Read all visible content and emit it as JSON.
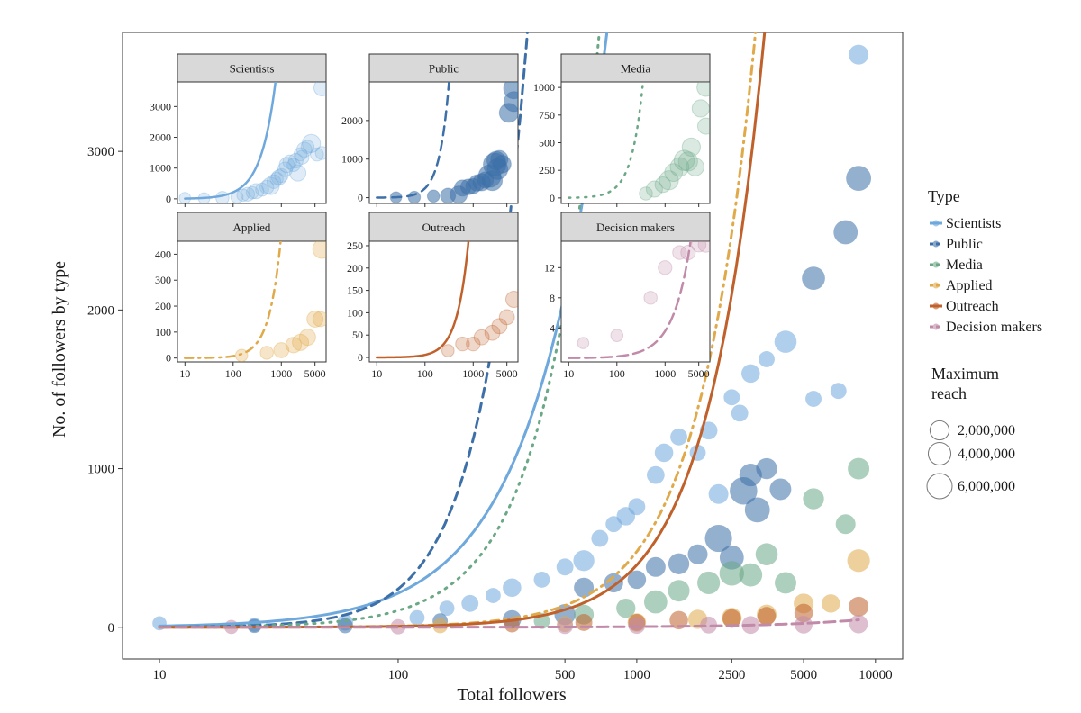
{
  "chart_data": {
    "type": "scatter",
    "xlabel": "Total followers",
    "ylabel": "No. of followers by type",
    "x_scale": "log",
    "xlim": [
      7,
      13000
    ],
    "ylim": [
      -200,
      3750
    ],
    "xticks": [
      10,
      100,
      500,
      1000,
      2500,
      5000,
      10000
    ],
    "xtick_labels": [
      "10",
      "100",
      "500",
      "1000",
      "2500",
      "5000",
      "10000"
    ],
    "yticks": [
      0,
      1000,
      2000,
      3000
    ],
    "ytick_labels": [
      "0",
      "1000",
      "2000",
      "3000"
    ],
    "grid": false,
    "legend_type": {
      "title": "Type",
      "position": "right",
      "entries": [
        "Scientists",
        "Public",
        "Media",
        "Applied",
        "Outreach",
        "Decision makers"
      ]
    },
    "legend_size": {
      "title_line1": "Maximum",
      "title_line2": "reach",
      "entries": [
        {
          "label": "2,000,000",
          "value": 2000000
        },
        {
          "label": "4,000,000",
          "value": 4000000
        },
        {
          "label": "6,000,000",
          "value": 6000000
        }
      ]
    },
    "series": [
      {
        "name": "Scientists",
        "color": "#6fa8dc",
        "dash": "solid",
        "fit_share": 0.31,
        "fit_power": 1.42,
        "points": [
          [
            10,
            25,
            0.3
          ],
          [
            25,
            15,
            0.3
          ],
          [
            60,
            30,
            0.5
          ],
          [
            120,
            60,
            0.4
          ],
          [
            160,
            120,
            0.4
          ],
          [
            200,
            150,
            0.6
          ],
          [
            250,
            200,
            0.4
          ],
          [
            300,
            250,
            0.8
          ],
          [
            400,
            300,
            0.5
          ],
          [
            500,
            380,
            0.6
          ],
          [
            600,
            420,
            1.2
          ],
          [
            700,
            560,
            0.6
          ],
          [
            800,
            650,
            0.5
          ],
          [
            900,
            700,
            0.8
          ],
          [
            1000,
            760,
            0.6
          ],
          [
            1200,
            960,
            0.7
          ],
          [
            1300,
            1100,
            0.8
          ],
          [
            1500,
            1200,
            0.6
          ],
          [
            1800,
            1100,
            0.5
          ],
          [
            2000,
            1240,
            0.7
          ],
          [
            2200,
            840,
            1.0
          ],
          [
            2500,
            1450,
            0.5
          ],
          [
            2700,
            1350,
            0.6
          ],
          [
            3000,
            1600,
            0.8
          ],
          [
            3500,
            1690,
            0.5
          ],
          [
            4200,
            1800,
            1.4
          ],
          [
            5500,
            1440,
            0.5
          ],
          [
            7000,
            1490,
            0.5
          ],
          [
            8500,
            3610,
            1.0
          ]
        ]
      },
      {
        "name": "Public",
        "color": "#3d6fa8",
        "dash": "10,7",
        "fit_share": 0.0096,
        "fit_power": 2.2,
        "points": [
          [
            25,
            8,
            0.3
          ],
          [
            60,
            10,
            0.4
          ],
          [
            150,
            40,
            0.4
          ],
          [
            300,
            50,
            0.8
          ],
          [
            500,
            80,
            1.2
          ],
          [
            600,
            250,
            1.0
          ],
          [
            800,
            280,
            0.9
          ],
          [
            1000,
            300,
            0.8
          ],
          [
            1200,
            380,
            1.0
          ],
          [
            1500,
            400,
            1.2
          ],
          [
            1800,
            460,
            1.0
          ],
          [
            2200,
            560,
            2.5
          ],
          [
            2500,
            440,
            1.8
          ],
          [
            2800,
            860,
            2.6
          ],
          [
            3000,
            960,
            1.5
          ],
          [
            3200,
            740,
            2.0
          ],
          [
            3500,
            1000,
            1.2
          ],
          [
            4000,
            870,
            1.3
          ],
          [
            5500,
            2200,
            1.6
          ],
          [
            7500,
            2490,
            1.8
          ],
          [
            8500,
            2830,
            2.0
          ]
        ]
      },
      {
        "name": "Media",
        "color": "#6aa886",
        "dash": "2,7",
        "fit_share": 0.022,
        "fit_power": 1.84,
        "points": [
          [
            400,
            40,
            0.5
          ],
          [
            600,
            80,
            1.0
          ],
          [
            900,
            120,
            0.9
          ],
          [
            1200,
            160,
            1.6
          ],
          [
            1500,
            230,
            1.3
          ],
          [
            2000,
            280,
            1.5
          ],
          [
            2500,
            340,
            1.9
          ],
          [
            3000,
            330,
            1.6
          ],
          [
            3500,
            460,
            1.4
          ],
          [
            4200,
            280,
            1.3
          ],
          [
            5500,
            810,
            1.2
          ],
          [
            7500,
            650,
            1.0
          ],
          [
            8500,
            1000,
            1.3
          ]
        ]
      },
      {
        "name": "Applied",
        "color": "#e0a94a",
        "dash": "9,6,2,6",
        "fit_share": 0.0019,
        "fit_power": 1.8,
        "points": [
          [
            150,
            10,
            0.4
          ],
          [
            500,
            20,
            0.5
          ],
          [
            1000,
            30,
            0.8
          ],
          [
            1800,
            50,
            0.9
          ],
          [
            2500,
            60,
            1.0
          ],
          [
            3500,
            80,
            1.0
          ],
          [
            5000,
            150,
            1.0
          ],
          [
            6500,
            150,
            0.8
          ],
          [
            8500,
            420,
            1.5
          ]
        ]
      },
      {
        "name": "Outreach",
        "color": "#c0612b",
        "dash": "solid",
        "fit_share": 0.00127,
        "fit_power": 1.83,
        "points": [
          [
            300,
            15,
            0.4
          ],
          [
            600,
            30,
            0.6
          ],
          [
            1000,
            30,
            0.6
          ],
          [
            1500,
            45,
            0.8
          ],
          [
            2500,
            55,
            0.8
          ],
          [
            3500,
            70,
            0.8
          ],
          [
            5000,
            90,
            0.8
          ],
          [
            8500,
            130,
            1.0
          ]
        ]
      },
      {
        "name": "Decision makers",
        "color": "#c18aa8",
        "dash": "12,6",
        "fit_share": 0.0009,
        "fit_power": 1.2,
        "points": [
          [
            20,
            2,
            0.3
          ],
          [
            100,
            3,
            0.4
          ],
          [
            500,
            8,
            0.5
          ],
          [
            1000,
            12,
            0.6
          ],
          [
            2000,
            14,
            0.6
          ],
          [
            3000,
            14,
            0.7
          ],
          [
            5000,
            16,
            0.7
          ],
          [
            8500,
            20,
            0.8
          ]
        ]
      }
    ],
    "insets": [
      {
        "title": "Scientists",
        "series": "Scientists",
        "ylim": [
          -150,
          3800
        ],
        "yticks": [
          0,
          1000,
          2000,
          3000
        ],
        "ytick_labels": [
          "0",
          "1000",
          "2000",
          "3000"
        ],
        "fit_share": 0.31,
        "fit_power": 1.42,
        "point_alpha": 0.22
      },
      {
        "title": "Public",
        "series": "Public",
        "ylim": [
          -150,
          3000
        ],
        "yticks": [
          0,
          1000,
          2000
        ],
        "ytick_labels": [
          "0",
          "1000",
          "2000"
        ],
        "fit_share": 0.0096,
        "fit_power": 2.2,
        "point_alpha": 0.55
      },
      {
        "title": "Media",
        "series": "Media",
        "ylim": [
          -50,
          1050
        ],
        "yticks": [
          0,
          250,
          500,
          750,
          1000
        ],
        "ytick_labels": [
          "0",
          "250",
          "500",
          "750",
          "1000"
        ],
        "fit_share": 0.022,
        "fit_power": 1.84,
        "point_alpha": 0.25
      },
      {
        "title": "Applied",
        "series": "Applied",
        "ylim": [
          -15,
          450
        ],
        "yticks": [
          0,
          100,
          200,
          300,
          400
        ],
        "ytick_labels": [
          "0",
          "100",
          "200",
          "300",
          "400"
        ],
        "fit_share": 0.0019,
        "fit_power": 1.8,
        "point_alpha": 0.3
      },
      {
        "title": "Outreach",
        "series": "Outreach",
        "ylim": [
          -10,
          260
        ],
        "yticks": [
          0,
          50,
          100,
          150,
          200,
          250
        ],
        "ytick_labels": [
          "0",
          "50",
          "100",
          "150",
          "200",
          "250"
        ],
        "fit_share": 0.00127,
        "fit_power": 1.83,
        "point_alpha": 0.25
      },
      {
        "title": "Decision makers",
        "series": "Decision makers",
        "ylim": [
          -0.5,
          15.5
        ],
        "yticks": [
          4,
          8,
          12
        ],
        "ytick_labels": [
          "4",
          "8",
          "12"
        ],
        "fit_share": 0.0009,
        "fit_power": 1.2,
        "point_alpha": 0.25
      }
    ],
    "inset_xlim": [
      7,
      8500
    ],
    "inset_xticks": [
      10,
      100,
      1000,
      5000
    ],
    "inset_xtick_labels": [
      "10",
      "100",
      "1000",
      "5000"
    ]
  }
}
